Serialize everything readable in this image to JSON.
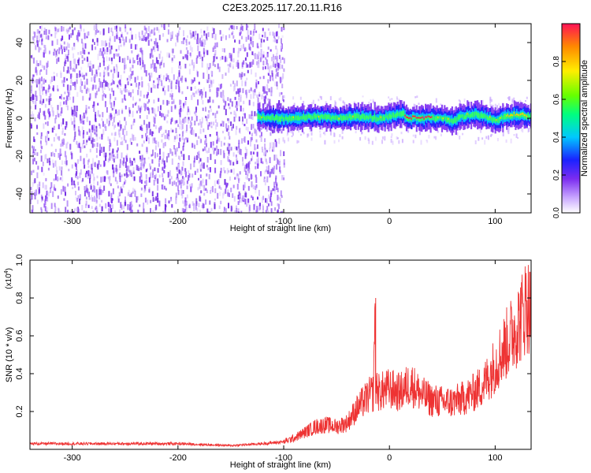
{
  "title": "C2E3.2025.117.20.11.R16",
  "colors": {
    "snr_line": "#ee3333",
    "scatter": "#7b2cf0",
    "axis": "#000000"
  },
  "chart_data": [
    {
      "type": "heatmap",
      "title": "C2E3.2025.117.20.11.R16",
      "xlabel": "Height of straight line (km)",
      "ylabel": "Frequency (Hz)",
      "xlim": [
        -340,
        134
      ],
      "ylim": [
        -50,
        50
      ],
      "x_ticks": [
        -300,
        -200,
        -100,
        0,
        100
      ],
      "y_ticks": [
        -40,
        -20,
        0,
        20,
        40
      ],
      "x_tick_labels": [
        "-300",
        "-200",
        "-100",
        "0",
        "100"
      ],
      "y_tick_labels": [
        "-40",
        "-20",
        "0",
        "20",
        "40"
      ],
      "colorbar": {
        "label": "Normalized spectral amplitude",
        "range": [
          0,
          1
        ],
        "ticks": [
          0.0,
          0.2,
          0.4,
          0.6,
          0.8
        ],
        "tick_labels": [
          "0.0",
          "0.2",
          "0.4",
          "0.6",
          "0.8"
        ]
      },
      "ridge": {
        "x": [
          -125,
          -110,
          -90,
          -70,
          -50,
          -30,
          -10,
          0,
          10,
          13,
          15,
          30,
          50,
          60,
          70,
          80,
          90,
          100,
          110,
          120,
          134
        ],
        "y": [
          1,
          0,
          0,
          1,
          0,
          1,
          0,
          1,
          2,
          3,
          0,
          0,
          0,
          -1,
          1,
          2,
          1,
          -1,
          1,
          2,
          1
        ]
      }
    },
    {
      "type": "line",
      "xlabel": "Height of straight line (km)",
      "ylabel": "SNR (10 * v/v)",
      "y_scale_label": "(x10",
      "y_scale_exponent": "4",
      "xlim": [
        -340,
        134
      ],
      "ylim": [
        0,
        1.0
      ],
      "x_ticks": [
        -300,
        -200,
        -100,
        0,
        100
      ],
      "y_ticks": [
        0.2,
        0.4,
        0.6,
        0.8,
        1.0
      ],
      "x_tick_labels": [
        "-300",
        "-200",
        "-100",
        "0",
        "100"
      ],
      "y_tick_labels": [
        "0.2",
        "0.4",
        "0.6",
        "0.8",
        "1.0"
      ],
      "series": [
        {
          "x": [
            -340,
            -300,
            -250,
            -200,
            -150,
            -120,
            -100,
            -90,
            -80,
            -70,
            -60,
            -50,
            -40,
            -30,
            -20,
            -15,
            -14,
            -13,
            -10,
            0,
            10,
            20,
            30,
            40,
            50,
            60,
            70,
            80,
            90,
            100,
            110,
            120,
            125,
            130,
            134
          ],
          "y": [
            0.03,
            0.03,
            0.03,
            0.03,
            0.02,
            0.03,
            0.04,
            0.06,
            0.09,
            0.12,
            0.13,
            0.12,
            0.14,
            0.22,
            0.28,
            0.3,
            0.8,
            0.35,
            0.3,
            0.32,
            0.3,
            0.35,
            0.29,
            0.26,
            0.25,
            0.25,
            0.27,
            0.3,
            0.35,
            0.45,
            0.55,
            0.65,
            0.7,
            0.78,
            0.72
          ]
        }
      ]
    }
  ]
}
